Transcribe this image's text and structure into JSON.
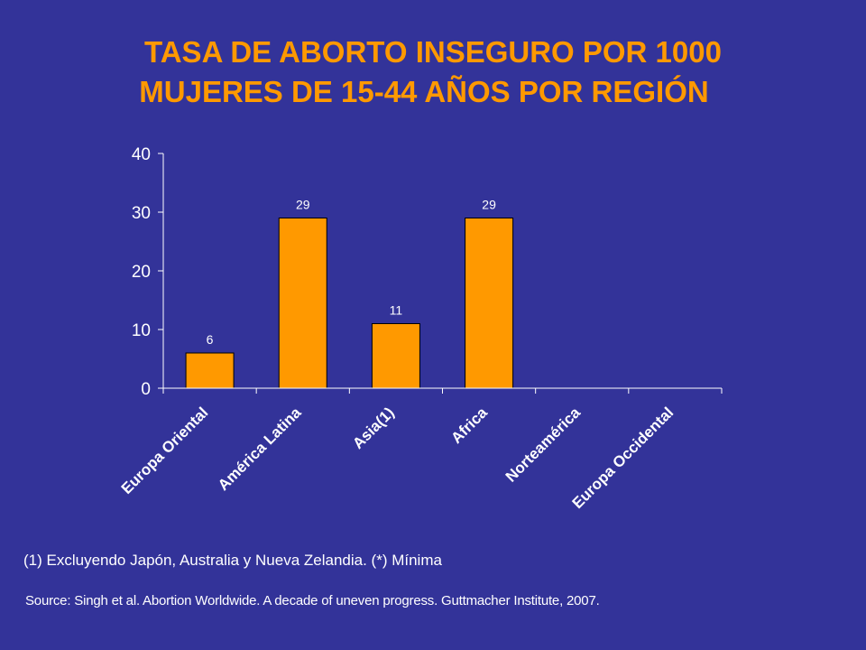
{
  "title": {
    "line1": "TASA DE ABORTO INSEGURO POR 1000",
    "line2": "MUJERES DE 15-44 AÑOS POR REGIÓN"
  },
  "chart_data": {
    "type": "bar",
    "categories": [
      "Europa Oriental",
      "América Latina",
      "Asia(1)",
      "Africa",
      "Norteamérica",
      "Europa Occidental"
    ],
    "values": [
      6,
      29,
      11,
      29,
      null,
      null
    ],
    "data_labels": [
      "6",
      "29",
      "11",
      "29",
      "",
      ""
    ],
    "ylim": [
      0,
      40
    ],
    "yticks": [
      0,
      10,
      20,
      30,
      40
    ],
    "ytick_labels": [
      "0",
      "10",
      "20",
      "30",
      "40"
    ],
    "grid": false,
    "colors": {
      "bar": "#ff9900",
      "bar_edge": "#000000",
      "axis": "#ffffff",
      "text": "#ffffff"
    }
  },
  "footnote": "(1) Excluyendo Japón, Australia y Nueva Zelandia. (*) Mínima",
  "source": "Source: Singh et al. Abortion Worldwide. A decade of uneven progress. Guttmacher Institute, 2007."
}
